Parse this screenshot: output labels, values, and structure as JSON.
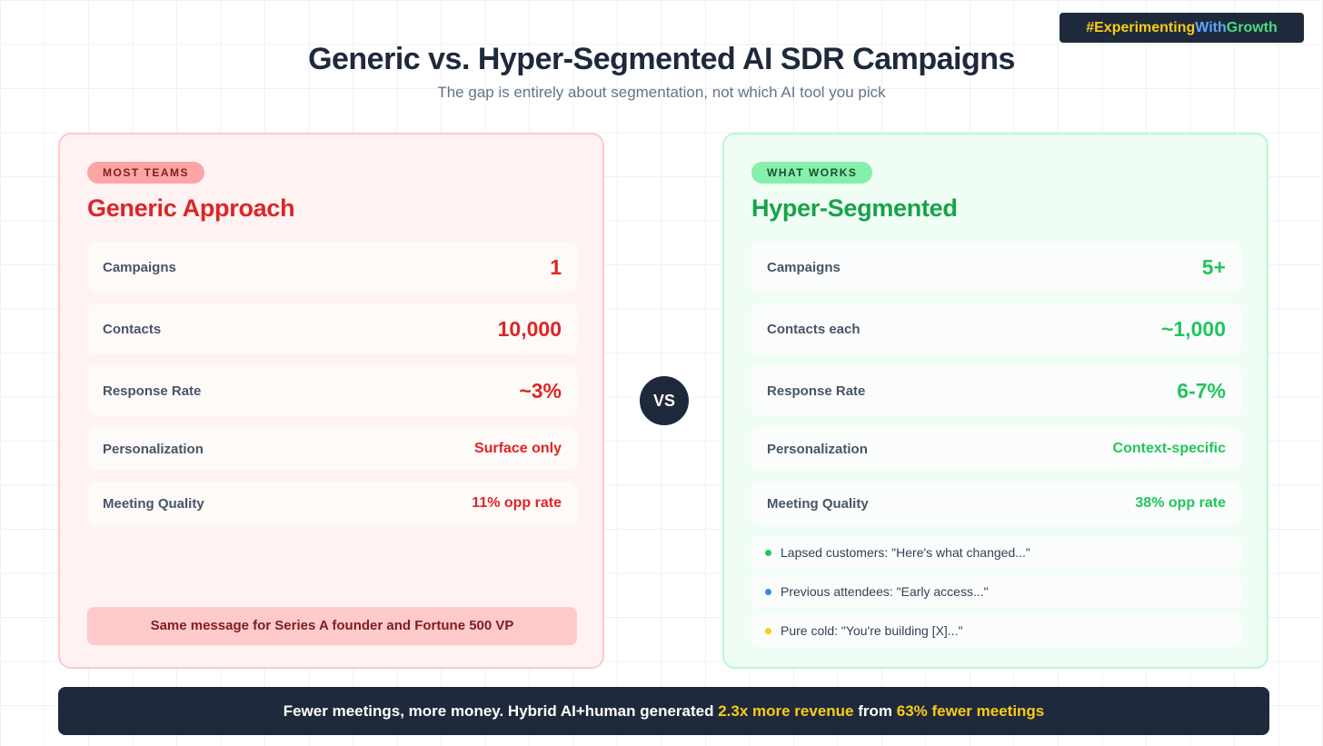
{
  "hashtag": {
    "part1": "#Experimenting",
    "part2": "With",
    "part3": "Growth"
  },
  "title": "Generic vs. Hyper-Segmented AI SDR Campaigns",
  "subtitle": "The gap is entirely about segmentation, not which AI tool you pick",
  "generic": {
    "badge": "MOST TEAMS",
    "title": "Generic Approach",
    "rows": [
      {
        "label": "Campaigns",
        "value": "1"
      },
      {
        "label": "Contacts",
        "value": "10,000"
      },
      {
        "label": "Response Rate",
        "value": "~3%"
      },
      {
        "label": "Personalization",
        "value": "Surface only"
      },
      {
        "label": "Meeting Quality",
        "value": "11% opp rate"
      }
    ],
    "footnote": "Same message for Series A founder and Fortune 500 VP"
  },
  "vs_label": "VS",
  "segmented": {
    "badge": "WHAT WORKS",
    "title": "Hyper-Segmented",
    "rows": [
      {
        "label": "Campaigns",
        "value": "5+"
      },
      {
        "label": "Contacts each",
        "value": "~1,000"
      },
      {
        "label": "Response Rate",
        "value": "6-7%"
      },
      {
        "label": "Personalization",
        "value": "Context-specific"
      },
      {
        "label": "Meeting Quality",
        "value": "38% opp rate"
      }
    ],
    "segments": [
      {
        "text": "Lapsed customers: \"Here's what changed...\"",
        "color": "#22c55e"
      },
      {
        "text": "Previous attendees: \"Early access...\"",
        "color": "#3b82f6"
      },
      {
        "text": "Pure cold: \"You're building [X]...\"",
        "color": "#facc15"
      }
    ]
  },
  "banner": {
    "part1": "Fewer meetings, more money. Hybrid AI+human generated ",
    "highlight1": "2.3x more revenue",
    "part2": " from ",
    "highlight2": "63% fewer meetings"
  }
}
